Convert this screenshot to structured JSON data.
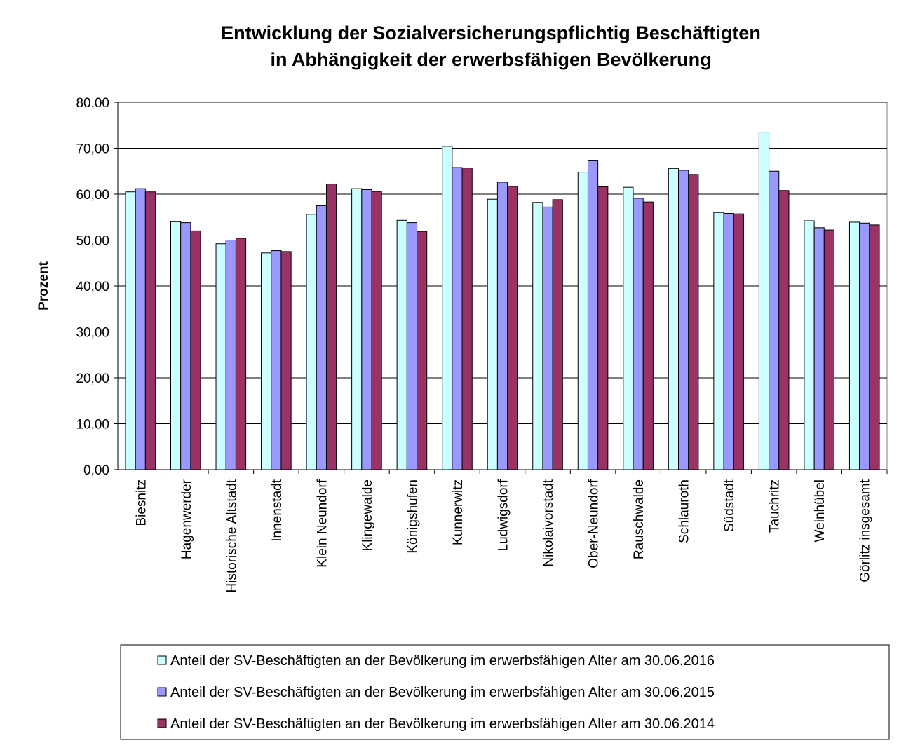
{
  "chart_data": {
    "type": "bar",
    "title": "Entwicklung der Sozialversicherungspflichtig Beschäftigten",
    "subtitle": "in Abhängigkeit der erwerbsfähigen Bevölkerung",
    "y_label": "Prozent",
    "categories": [
      "Biesnitz",
      "Hagenwerder",
      "Historische Altstadt",
      "Innenstadt",
      "Klein Neundorf",
      "Klingewalde",
      "Königshufen",
      "Kunnerwitz",
      "Ludwigsdorf",
      "Nikolaivorstadt",
      "Ober-Neundorf",
      "Rauschwalde",
      "Schlauroth",
      "Südstadt",
      "Tauchritz",
      "Weinhübel",
      "Görlitz insgesamt"
    ],
    "series": [
      {
        "name": "Anteil der SV-Beschäftigten an der Bevölkerung im erwerbsfähigen Alter am 30.06.2016",
        "color": "#ccffff",
        "values": [
          60.5,
          54.0,
          49.2,
          47.2,
          55.6,
          61.2,
          54.3,
          70.4,
          58.9,
          58.2,
          64.8,
          61.5,
          65.6,
          56.0,
          73.5,
          54.2,
          53.9
        ]
      },
      {
        "name": "Anteil der SV-Beschäftigten an der Bevölkerung im erwerbsfähigen Alter am 30.06.2015",
        "color": "#9999ff",
        "values": [
          61.2,
          53.8,
          50.0,
          47.7,
          57.5,
          61.0,
          53.8,
          65.8,
          62.6,
          57.2,
          67.4,
          59.1,
          65.2,
          55.8,
          65.0,
          52.7,
          53.7
        ]
      },
      {
        "name": "Anteil der SV-Beschäftigten an der Bevölkerung im erwerbsfähigen Alter am 30.06.2014",
        "color": "#993366",
        "values": [
          60.5,
          52.0,
          50.4,
          47.5,
          62.2,
          60.6,
          51.9,
          65.7,
          61.7,
          58.8,
          61.6,
          58.3,
          64.3,
          55.7,
          60.8,
          52.2,
          53.3
        ]
      }
    ],
    "ylim": [
      0,
      80
    ],
    "yticks": [
      {
        "value": 0,
        "label": "0,00"
      },
      {
        "value": 10,
        "label": "10,00"
      },
      {
        "value": 20,
        "label": "20,00"
      },
      {
        "value": 30,
        "label": "30,00"
      },
      {
        "value": 40,
        "label": "40,00"
      },
      {
        "value": 50,
        "label": "50,00"
      },
      {
        "value": 60,
        "label": "60,00"
      },
      {
        "value": 70,
        "label": "70,00"
      },
      {
        "value": 80,
        "label": "80,00"
      }
    ],
    "grid": true
  }
}
